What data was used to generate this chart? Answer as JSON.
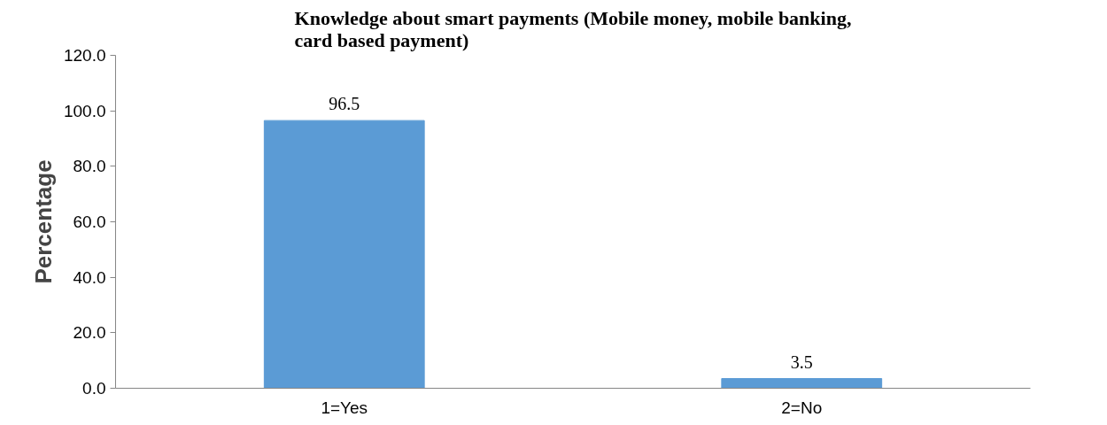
{
  "chart_data": {
    "type": "bar",
    "title": "Knowledge about smart payments (Mobile money, mobile banking, card based payment)",
    "ylabel": "Percentage",
    "categories": [
      "1=Yes",
      "2=No"
    ],
    "series": [
      {
        "color": "#5b9bd5",
        "values": [
          96.5,
          3.5
        ]
      }
    ],
    "ylim": [
      0,
      120
    ],
    "yticks": [
      {
        "value": 0,
        "label": "0.0"
      },
      {
        "value": 20,
        "label": "20.0"
      },
      {
        "value": 40,
        "label": "40.0"
      },
      {
        "value": 60,
        "label": "60.0"
      },
      {
        "value": 80,
        "label": "80.0"
      },
      {
        "value": 100,
        "label": "100.0"
      },
      {
        "value": 120,
        "label": "120.0"
      }
    ],
    "data_labels": true,
    "grid": false
  }
}
